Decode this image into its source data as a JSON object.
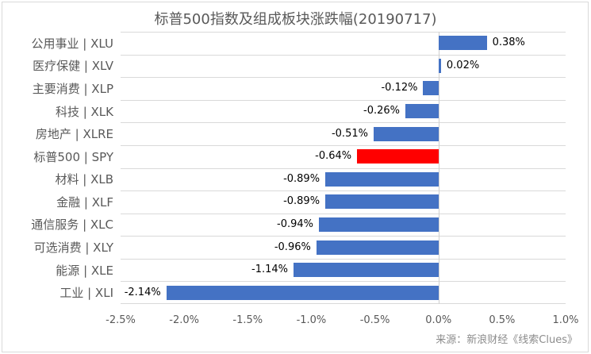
{
  "source_note": "来源：新浪财经《线索Clues》",
  "colors": {
    "bar": "#4472C4",
    "highlight": "#FF0000",
    "grid": "#D9D9D9",
    "title_text": "#595959",
    "axis_text": "#595959",
    "value_text": "#000000",
    "source_text": "#8C8C8C"
  },
  "chart_data": {
    "type": "bar",
    "orientation": "horizontal",
    "title": "标普500指数及组成板块涨跌幅(20190717)",
    "categories": [
      "公用事业 | XLU",
      "医疗保健 | XLV",
      "主要消费 | XLP",
      "科技 | XLK",
      "房地产 | XLRE",
      "标普500 | SPY",
      "材料 | XLB",
      "金融 | XLF",
      "通信服务 | XLC",
      "可选消费 | XLY",
      "能源 | XLE",
      "工业 | XLI"
    ],
    "values": [
      0.38,
      0.02,
      -0.12,
      -0.26,
      -0.51,
      -0.64,
      -0.89,
      -0.89,
      -0.94,
      -0.96,
      -1.14,
      -2.14
    ],
    "value_labels": [
      "0.38%",
      "0.02%",
      "-0.12%",
      "-0.26%",
      "-0.51%",
      "-0.64%",
      "-0.89%",
      "-0.89%",
      "-0.94%",
      "-0.96%",
      "-1.14%",
      "-2.14%"
    ],
    "highlight_index": 5,
    "xlabel": "",
    "ylabel": "",
    "xlim": [
      -2.5,
      1.0
    ],
    "xtick_values": [
      -2.5,
      -2.0,
      -1.5,
      -1.0,
      -0.5,
      0.0,
      0.5,
      1.0
    ],
    "xtick_labels": [
      "-2.5%",
      "-2.0%",
      "-1.5%",
      "-1.0%",
      "-0.5%",
      "0.0%",
      "0.5%",
      "1.0%"
    ],
    "grid": "row-separators-horizontal",
    "legend": "none"
  }
}
